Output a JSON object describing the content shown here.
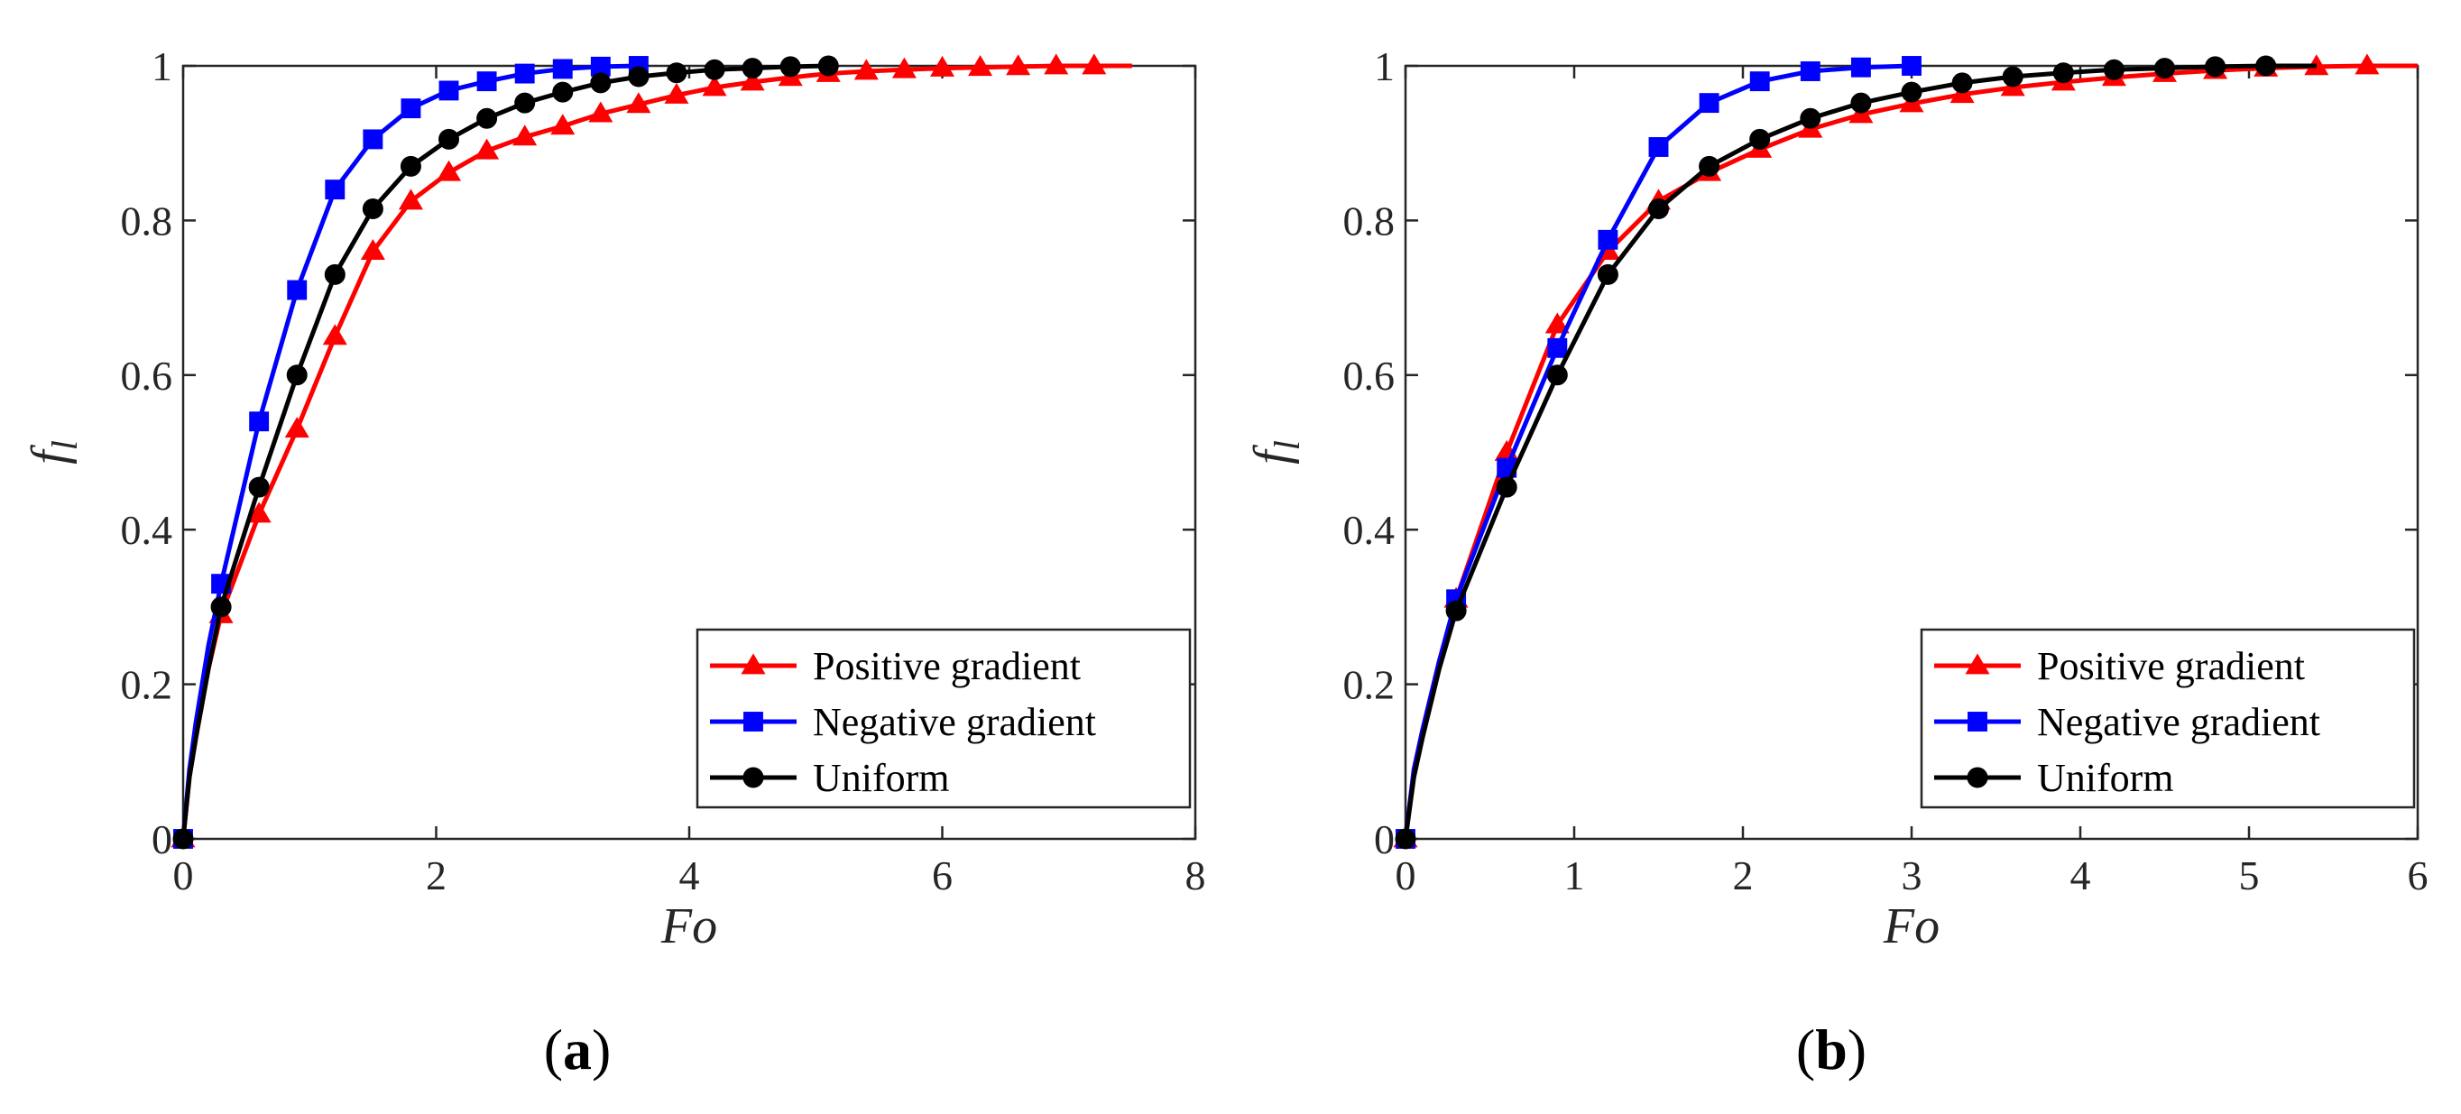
{
  "figure_title": "",
  "chart_data": [
    {
      "type": "line",
      "panel_label_open": "(",
      "panel_label_letter": "a",
      "panel_label_close": ")",
      "xlabel": "Fo",
      "ylabel_main": "f",
      "ylabel_sub": "l",
      "xlim": [
        0,
        8
      ],
      "ylim": [
        0,
        1
      ],
      "xticks": [
        0,
        2,
        4,
        6,
        8
      ],
      "yticks": [
        0,
        0.2,
        0.4,
        0.6,
        0.8,
        1
      ],
      "xtick_labels": [
        "0",
        "2",
        "4",
        "6",
        "8"
      ],
      "ytick_labels": [
        "0",
        "0.2",
        "0.4",
        "0.6",
        "0.8",
        "1"
      ],
      "legend_position": "bottom-right",
      "series": [
        {
          "name": "Positive gradient",
          "color": "#ff0000",
          "marker": "triangle",
          "x": [
            0,
            0.05,
            0.1,
            0.2,
            0.3,
            0.6,
            0.9,
            1.2,
            1.5,
            1.8,
            2.1,
            2.4,
            2.7,
            3.0,
            3.3,
            3.6,
            3.9,
            4.2,
            4.5,
            4.8,
            5.1,
            5.4,
            5.7,
            6.0,
            6.3,
            6.6,
            6.9,
            7.2,
            7.5
          ],
          "y": [
            0,
            0.08,
            0.13,
            0.22,
            0.29,
            0.42,
            0.53,
            0.65,
            0.76,
            0.825,
            0.862,
            0.89,
            0.908,
            0.922,
            0.938,
            0.95,
            0.962,
            0.972,
            0.979,
            0.985,
            0.99,
            0.993,
            0.995,
            0.997,
            0.998,
            0.999,
            1.0,
            1.0,
            1.0
          ],
          "marker_x": [
            0,
            0.3,
            0.6,
            0.9,
            1.2,
            1.5,
            1.8,
            2.1,
            2.4,
            2.7,
            3.0,
            3.3,
            3.6,
            3.9,
            4.2,
            4.5,
            4.8,
            5.1,
            5.4,
            5.7,
            6.0,
            6.3,
            6.6,
            6.9,
            7.2
          ],
          "marker_y": [
            0,
            0.29,
            0.42,
            0.53,
            0.65,
            0.76,
            0.825,
            0.862,
            0.89,
            0.908,
            0.922,
            0.938,
            0.95,
            0.962,
            0.972,
            0.979,
            0.985,
            0.99,
            0.993,
            0.995,
            0.997,
            0.998,
            0.999,
            1.0,
            1.0
          ]
        },
        {
          "name": "Negative gradient",
          "color": "#0000ff",
          "marker": "square",
          "x": [
            0,
            0.05,
            0.1,
            0.2,
            0.3,
            0.6,
            0.9,
            1.2,
            1.5,
            1.8,
            2.1,
            2.4,
            2.7,
            3.0,
            3.3,
            3.6
          ],
          "y": [
            0,
            0.09,
            0.15,
            0.25,
            0.33,
            0.54,
            0.71,
            0.84,
            0.905,
            0.945,
            0.968,
            0.98,
            0.99,
            0.996,
            0.999,
            1.0
          ],
          "marker_x": [
            0,
            0.3,
            0.6,
            0.9,
            1.2,
            1.5,
            1.8,
            2.1,
            2.4,
            2.7,
            3.0,
            3.3,
            3.6
          ],
          "marker_y": [
            0,
            0.33,
            0.54,
            0.71,
            0.84,
            0.905,
            0.945,
            0.968,
            0.98,
            0.99,
            0.996,
            0.999,
            1.0
          ]
        },
        {
          "name": "Uniform",
          "color": "#000000",
          "marker": "circle",
          "x": [
            0,
            0.05,
            0.1,
            0.2,
            0.3,
            0.6,
            0.9,
            1.2,
            1.5,
            1.8,
            2.1,
            2.4,
            2.7,
            3.0,
            3.3,
            3.6,
            3.9,
            4.2,
            4.5,
            4.8,
            5.1
          ],
          "y": [
            0,
            0.08,
            0.13,
            0.22,
            0.3,
            0.455,
            0.6,
            0.73,
            0.815,
            0.87,
            0.905,
            0.932,
            0.952,
            0.966,
            0.978,
            0.986,
            0.991,
            0.995,
            0.997,
            0.999,
            1.0
          ],
          "marker_x": [
            0,
            0.3,
            0.6,
            0.9,
            1.2,
            1.5,
            1.8,
            2.1,
            2.4,
            2.7,
            3.0,
            3.3,
            3.6,
            3.9,
            4.2,
            4.5,
            4.8,
            5.1
          ],
          "marker_y": [
            0,
            0.3,
            0.455,
            0.6,
            0.73,
            0.815,
            0.87,
            0.905,
            0.932,
            0.952,
            0.966,
            0.978,
            0.986,
            0.991,
            0.995,
            0.997,
            0.999,
            1.0
          ]
        }
      ]
    },
    {
      "type": "line",
      "panel_label_open": "(",
      "panel_label_letter": "b",
      "panel_label_close": ")",
      "xlabel": "Fo",
      "ylabel_main": "f",
      "ylabel_sub": "l",
      "xlim": [
        0,
        6
      ],
      "ylim": [
        0,
        1
      ],
      "xticks": [
        0,
        1,
        2,
        3,
        4,
        5,
        6
      ],
      "yticks": [
        0,
        0.2,
        0.4,
        0.6,
        0.8,
        1
      ],
      "xtick_labels": [
        "0",
        "1",
        "2",
        "3",
        "4",
        "5",
        "6"
      ],
      "ytick_labels": [
        "0",
        "0.2",
        "0.4",
        "0.6",
        "0.8",
        "1"
      ],
      "legend_position": "bottom-right",
      "series": [
        {
          "name": "Positive gradient",
          "color": "#ff0000",
          "marker": "triangle",
          "x": [
            0,
            0.05,
            0.1,
            0.2,
            0.3,
            0.6,
            0.9,
            1.2,
            1.5,
            1.8,
            2.1,
            2.4,
            2.7,
            3.0,
            3.3,
            3.6,
            3.9,
            4.2,
            4.5,
            4.8,
            5.1,
            5.4,
            5.7,
            6.0
          ],
          "y": [
            0,
            0.09,
            0.14,
            0.23,
            0.31,
            0.5,
            0.665,
            0.76,
            0.825,
            0.862,
            0.892,
            0.918,
            0.937,
            0.951,
            0.963,
            0.972,
            0.979,
            0.985,
            0.99,
            0.994,
            0.997,
            0.999,
            1.0,
            1.0
          ],
          "marker_x": [
            0,
            0.3,
            0.6,
            0.9,
            1.2,
            1.5,
            1.8,
            2.1,
            2.4,
            2.7,
            3.0,
            3.3,
            3.6,
            3.9,
            4.2,
            4.5,
            4.8,
            5.1,
            5.4,
            5.7
          ],
          "marker_y": [
            0,
            0.31,
            0.5,
            0.665,
            0.76,
            0.825,
            0.862,
            0.892,
            0.918,
            0.937,
            0.951,
            0.963,
            0.972,
            0.979,
            0.985,
            0.99,
            0.994,
            0.997,
            0.999,
            1.0
          ]
        },
        {
          "name": "Negative gradient",
          "color": "#0000ff",
          "marker": "square",
          "x": [
            0,
            0.05,
            0.1,
            0.2,
            0.3,
            0.6,
            0.9,
            1.2,
            1.5,
            1.8,
            2.1,
            2.4,
            2.7,
            3.0
          ],
          "y": [
            0,
            0.09,
            0.14,
            0.23,
            0.31,
            0.48,
            0.635,
            0.775,
            0.895,
            0.952,
            0.98,
            0.993,
            0.998,
            1.0
          ],
          "marker_x": [
            0,
            0.3,
            0.6,
            0.9,
            1.2,
            1.5,
            1.8,
            2.1,
            2.4,
            2.7,
            3.0
          ],
          "marker_y": [
            0,
            0.31,
            0.48,
            0.635,
            0.775,
            0.895,
            0.952,
            0.98,
            0.993,
            0.998,
            1.0
          ]
        },
        {
          "name": "Uniform",
          "color": "#000000",
          "marker": "circle",
          "x": [
            0,
            0.05,
            0.1,
            0.2,
            0.3,
            0.6,
            0.9,
            1.2,
            1.5,
            1.8,
            2.1,
            2.4,
            2.7,
            3.0,
            3.3,
            3.6,
            3.9,
            4.2,
            4.5,
            4.8,
            5.1,
            5.4
          ],
          "y": [
            0,
            0.08,
            0.13,
            0.22,
            0.295,
            0.455,
            0.6,
            0.73,
            0.815,
            0.87,
            0.905,
            0.932,
            0.952,
            0.966,
            0.978,
            0.986,
            0.991,
            0.995,
            0.997,
            0.999,
            1.0,
            1.0
          ],
          "marker_x": [
            0,
            0.3,
            0.6,
            0.9,
            1.2,
            1.5,
            1.8,
            2.1,
            2.4,
            2.7,
            3.0,
            3.3,
            3.6,
            3.9,
            4.2,
            4.5,
            4.8,
            5.1
          ],
          "marker_y": [
            0,
            0.295,
            0.455,
            0.6,
            0.73,
            0.815,
            0.87,
            0.905,
            0.932,
            0.952,
            0.966,
            0.978,
            0.986,
            0.991,
            0.995,
            0.997,
            0.999,
            1.0
          ]
        }
      ]
    }
  ]
}
